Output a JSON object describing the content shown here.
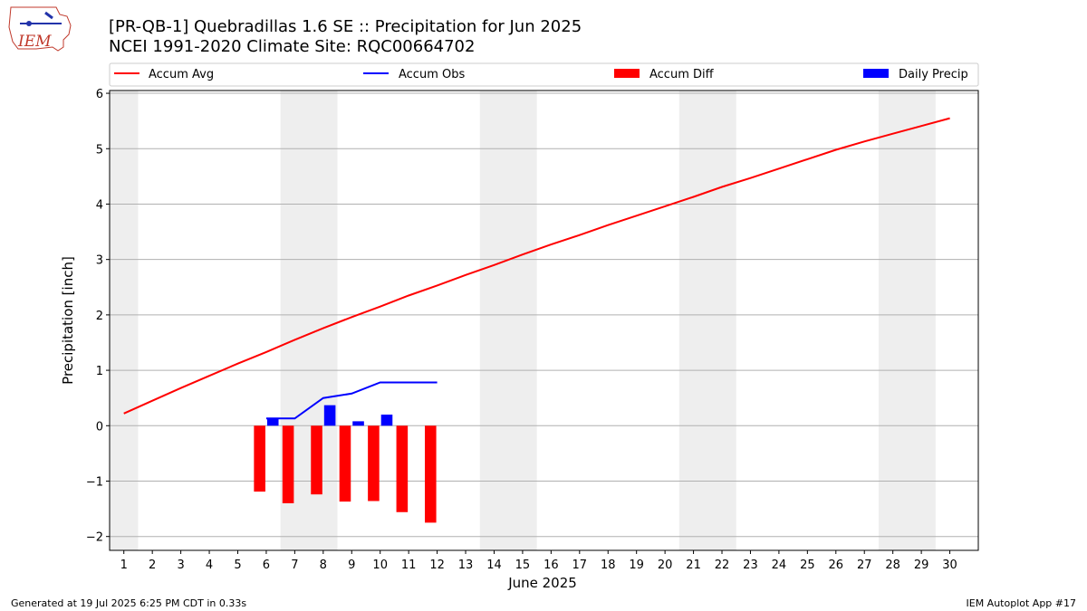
{
  "header": {
    "title_line1": "[PR-QB-1] Quebradillas 1.6 SE :: Precipitation for Jun 2025",
    "title_line2": "NCEI 1991-2020 Climate Site: RQC00664702",
    "logo_text": "IEM"
  },
  "footer": {
    "generated": "Generated at 19 Jul 2025 6:25 PM CDT in 0.33s",
    "app": "IEM Autoplot App #17"
  },
  "colors": {
    "accum_avg": "#ff0000",
    "accum_obs": "#0000ff",
    "accum_diff": "#ff0000",
    "daily_precip": "#0000ff",
    "weekend_shade": "#eeeeee",
    "grid": "#b0b0b0"
  },
  "chart_data": {
    "type": "line",
    "xlabel": "June 2025",
    "ylabel": "Precipitation [inch]",
    "ylim": [
      -2.25,
      6.05
    ],
    "xlim": [
      0.5,
      31.0
    ],
    "yticks": [
      -2,
      -1,
      0,
      1,
      2,
      3,
      4,
      5,
      6
    ],
    "yticklabels": [
      "−2",
      "−1",
      "0",
      "1",
      "2",
      "3",
      "4",
      "5",
      "6"
    ],
    "xticks": [
      1,
      2,
      3,
      4,
      5,
      6,
      7,
      8,
      9,
      10,
      11,
      12,
      13,
      14,
      15,
      16,
      17,
      18,
      19,
      20,
      21,
      22,
      23,
      24,
      25,
      26,
      27,
      28,
      29,
      30
    ],
    "grid": "horizontal",
    "legend": {
      "placement": "top",
      "entries": [
        "Accum Avg",
        "Accum Obs",
        "Accum Diff",
        "Daily Precip"
      ]
    },
    "weekend_spans": [
      [
        0.5,
        1.5
      ],
      [
        6.5,
        8.5
      ],
      [
        13.5,
        15.5
      ],
      [
        20.5,
        22.5
      ],
      [
        27.5,
        29.5
      ]
    ],
    "series": [
      {
        "name": "Accum Avg",
        "kind": "line",
        "x": [
          1,
          2,
          3,
          4,
          5,
          6,
          7,
          8,
          9,
          10,
          11,
          12,
          13,
          14,
          15,
          16,
          17,
          18,
          19,
          20,
          21,
          22,
          23,
          24,
          25,
          26,
          27,
          28,
          29,
          30
        ],
        "values": [
          0.22,
          0.45,
          0.68,
          0.9,
          1.12,
          1.33,
          1.55,
          1.76,
          1.96,
          2.15,
          2.35,
          2.53,
          2.72,
          2.9,
          3.09,
          3.27,
          3.44,
          3.62,
          3.79,
          3.96,
          4.13,
          4.31,
          4.47,
          4.64,
          4.81,
          4.98,
          5.13,
          5.27,
          5.41,
          5.55
        ]
      },
      {
        "name": "Accum Obs",
        "kind": "line",
        "x": [
          6,
          7,
          8,
          9,
          10,
          11,
          12
        ],
        "values": [
          0.13,
          0.13,
          0.5,
          0.58,
          0.78,
          0.78,
          0.78
        ]
      },
      {
        "name": "Accum Diff",
        "kind": "bar",
        "x": [
          6,
          7,
          8,
          9,
          10,
          11,
          12
        ],
        "values": [
          -1.19,
          -1.4,
          -1.24,
          -1.37,
          -1.36,
          -1.56,
          -1.75
        ]
      },
      {
        "name": "Daily Precip",
        "kind": "bar",
        "x": [
          6,
          7,
          8,
          9,
          10,
          11,
          12
        ],
        "values": [
          0.13,
          0.0,
          0.37,
          0.08,
          0.2,
          0.0,
          0.0
        ]
      }
    ]
  }
}
